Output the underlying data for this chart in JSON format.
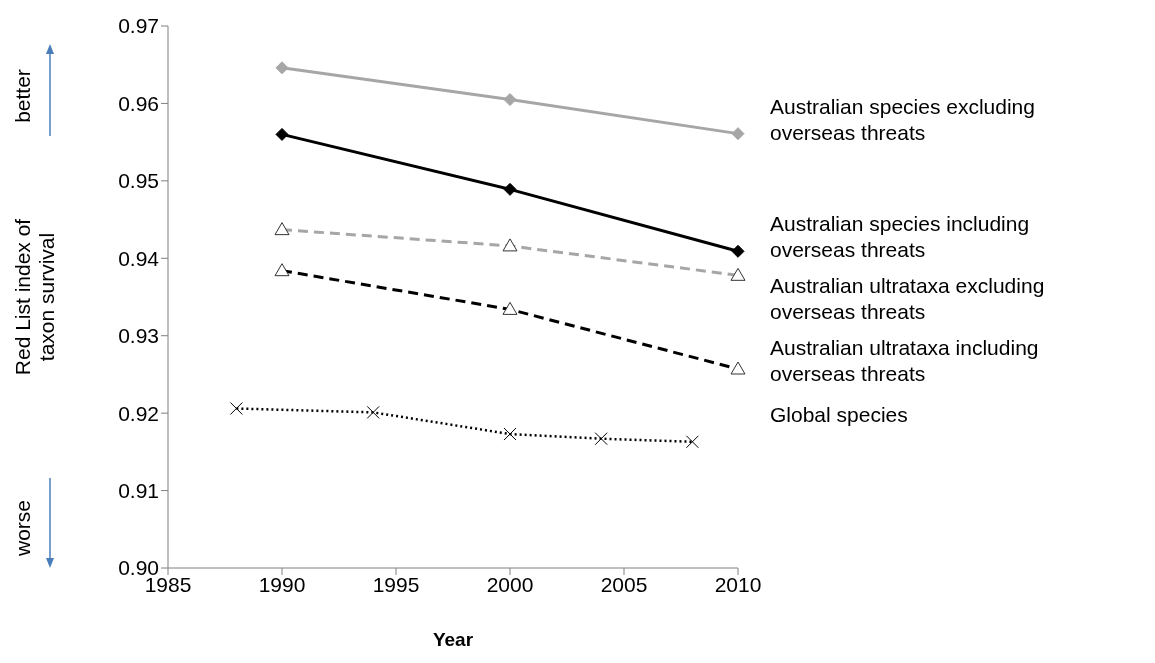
{
  "chart_data": {
    "type": "line",
    "xlabel": "Year",
    "ylabel": "Red List index of taxon survival",
    "annotations": [
      "better",
      "worse"
    ],
    "xlim": [
      1985,
      2010
    ],
    "xticks": [
      1985,
      1990,
      1995,
      2000,
      2005,
      2010
    ],
    "ylim": [
      0.9,
      0.97
    ],
    "yticks": [
      {
        "value": 0.9,
        "label": "0.90"
      },
      0.91,
      0.92,
      0.93,
      0.94,
      0.95,
      0.96,
      0.97
    ],
    "series": [
      {
        "name": "Australian species excluding overseas threats",
        "color": "#a6a6a6",
        "marker": "diamond",
        "line_style": "solid",
        "x": [
          1990,
          2000,
          2010
        ],
        "values": [
          0.9646,
          0.9605,
          0.9561
        ]
      },
      {
        "name": "Australian species including overseas threats",
        "color": "#000000",
        "marker": "diamond",
        "line_style": "solid",
        "x": [
          1990,
          2000,
          2010
        ],
        "values": [
          0.956,
          0.9489,
          0.9409
        ]
      },
      {
        "name": "Australian ultrataxa excluding overseas threats",
        "color": "#a6a6a6",
        "marker": "triangle",
        "line_style": "dashed",
        "x": [
          1990,
          2000,
          2010
        ],
        "values": [
          0.9437,
          0.9416,
          0.9378
        ]
      },
      {
        "name": "Australian ultrataxa including overseas threats",
        "color": "#000000",
        "marker": "triangle",
        "line_style": "dashed",
        "x": [
          1990,
          2000,
          2010
        ],
        "values": [
          0.9384,
          0.9334,
          0.9257
        ]
      },
      {
        "name": "Global species",
        "color": "#000000",
        "marker": "cross",
        "line_style": "dotted",
        "x": [
          1988,
          1994,
          2000,
          2004,
          2008
        ],
        "values": [
          0.9206,
          0.9201,
          0.9173,
          0.9167,
          0.9163
        ]
      }
    ]
  }
}
